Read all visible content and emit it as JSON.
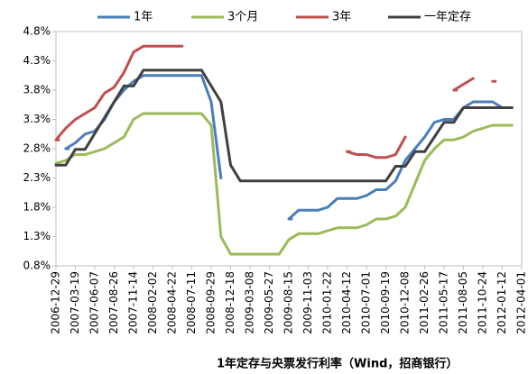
{
  "chart_data": {
    "type": "line",
    "title": "1年定存与央票发行利率（Wind，招商银行）",
    "x": [
      "2006-12-29",
      "2007-02-07",
      "2007-03-19",
      "2007-04-28",
      "2007-06-07",
      "2007-07-17",
      "2007-08-26",
      "2007-10-05",
      "2007-11-14",
      "2007-12-24",
      "2008-02-02",
      "2008-03-13",
      "2008-04-22",
      "2008-06-01",
      "2008-07-11",
      "2008-08-20",
      "2008-09-29",
      "2008-11-08",
      "2008-12-18",
      "2009-01-27",
      "2009-03-08",
      "2009-04-17",
      "2009-05-27",
      "2009-07-06",
      "2009-08-15",
      "2009-09-24",
      "2009-11-03",
      "2009-12-13",
      "2010-01-22",
      "2010-03-03",
      "2010-04-12",
      "2010-05-22",
      "2010-07-01",
      "2010-08-10",
      "2010-09-19",
      "2010-10-29",
      "2010-12-08",
      "2011-01-17",
      "2011-02-26",
      "2011-04-07",
      "2011-05-17",
      "2011-06-26",
      "2011-08-05",
      "2011-09-14",
      "2011-10-24",
      "2011-12-03",
      "2012-01-12",
      "2012-02-21",
      "2012-04-01"
    ],
    "xlim": [
      "2006-12-29",
      "2012-04-01"
    ],
    "xticks": [
      "2006-12-29",
      "2007-03-19",
      "2007-06-07",
      "2007-08-26",
      "2007-11-14",
      "2008-02-02",
      "2008-04-22",
      "2008-07-11",
      "2008-09-29",
      "2008-12-18",
      "2009-03-08",
      "2009-05-27",
      "2009-08-15",
      "2009-11-03",
      "2010-01-22",
      "2010-04-12",
      "2010-07-01",
      "2010-09-19",
      "2010-12-08",
      "2011-02-26",
      "2011-05-17",
      "2011-08-05",
      "2011-10-24",
      "2012-01-12",
      "2012-04-01"
    ],
    "ylim": [
      0.8,
      4.8
    ],
    "yticks": [
      {
        "value": 0.8,
        "label": "0.8%"
      },
      {
        "value": 1.3,
        "label": "1.3%"
      },
      {
        "value": 1.8,
        "label": "1.8%"
      },
      {
        "value": 2.3,
        "label": "2.3%"
      },
      {
        "value": 2.8,
        "label": "2.8%"
      },
      {
        "value": 3.3,
        "label": "3.3%"
      },
      {
        "value": 3.8,
        "label": "3.8%"
      },
      {
        "value": 4.3,
        "label": "4.3%"
      },
      {
        "value": 4.8,
        "label": "4.8%"
      }
    ],
    "grid": false,
    "legend": "top",
    "series": [
      {
        "name": "1年",
        "color": "#4a7ebb",
        "values": [
          null,
          2.8,
          2.9,
          3.05,
          3.1,
          3.3,
          3.6,
          3.8,
          3.95,
          4.05,
          4.05,
          4.05,
          4.05,
          4.05,
          4.05,
          4.05,
          3.6,
          2.3,
          null,
          null,
          null,
          null,
          null,
          null,
          1.6,
          1.75,
          1.75,
          1.75,
          1.8,
          1.95,
          1.95,
          1.95,
          2.0,
          2.1,
          2.1,
          2.25,
          2.6,
          2.8,
          3.0,
          3.25,
          3.3,
          3.3,
          3.5,
          3.6,
          3.6,
          3.6,
          3.5,
          3.5,
          null
        ]
      },
      {
        "name": "3个月",
        "color": "#9bbb59",
        "values": [
          2.55,
          2.6,
          2.7,
          2.7,
          2.75,
          2.8,
          2.9,
          3.0,
          3.3,
          3.4,
          3.4,
          3.4,
          3.4,
          3.4,
          3.4,
          3.4,
          3.2,
          1.3,
          1.0,
          1.0,
          1.0,
          1.0,
          1.0,
          1.0,
          1.25,
          1.35,
          1.35,
          1.35,
          1.4,
          1.45,
          1.45,
          1.45,
          1.5,
          1.6,
          1.6,
          1.65,
          1.8,
          2.2,
          2.6,
          2.8,
          2.95,
          2.95,
          3.0,
          3.1,
          3.15,
          3.2,
          3.2,
          3.2,
          null
        ]
      },
      {
        "name": "3年",
        "color": "#c0504d",
        "values": [
          2.95,
          3.15,
          3.3,
          3.4,
          3.5,
          3.75,
          3.85,
          4.1,
          4.45,
          4.55,
          4.55,
          4.55,
          4.55,
          4.55,
          null,
          null,
          null,
          null,
          null,
          null,
          null,
          null,
          null,
          null,
          null,
          null,
          null,
          null,
          null,
          null,
          2.75,
          2.7,
          2.7,
          2.65,
          2.65,
          2.7,
          3.0,
          null,
          null,
          null,
          null,
          3.8,
          3.9,
          4.0,
          null,
          3.95,
          null,
          null,
          null
        ]
      },
      {
        "name": "一年定存",
        "color": "#404040",
        "values": [
          2.52,
          2.52,
          2.79,
          2.79,
          3.06,
          3.33,
          3.6,
          3.87,
          3.87,
          4.14,
          4.14,
          4.14,
          4.14,
          4.14,
          4.14,
          4.14,
          3.87,
          3.6,
          2.52,
          2.25,
          2.25,
          2.25,
          2.25,
          2.25,
          2.25,
          2.25,
          2.25,
          2.25,
          2.25,
          2.25,
          2.25,
          2.25,
          2.25,
          2.25,
          2.25,
          2.5,
          2.5,
          2.75,
          2.75,
          3.0,
          3.25,
          3.25,
          3.5,
          3.5,
          3.5,
          3.5,
          3.5,
          3.5,
          null
        ]
      }
    ]
  }
}
